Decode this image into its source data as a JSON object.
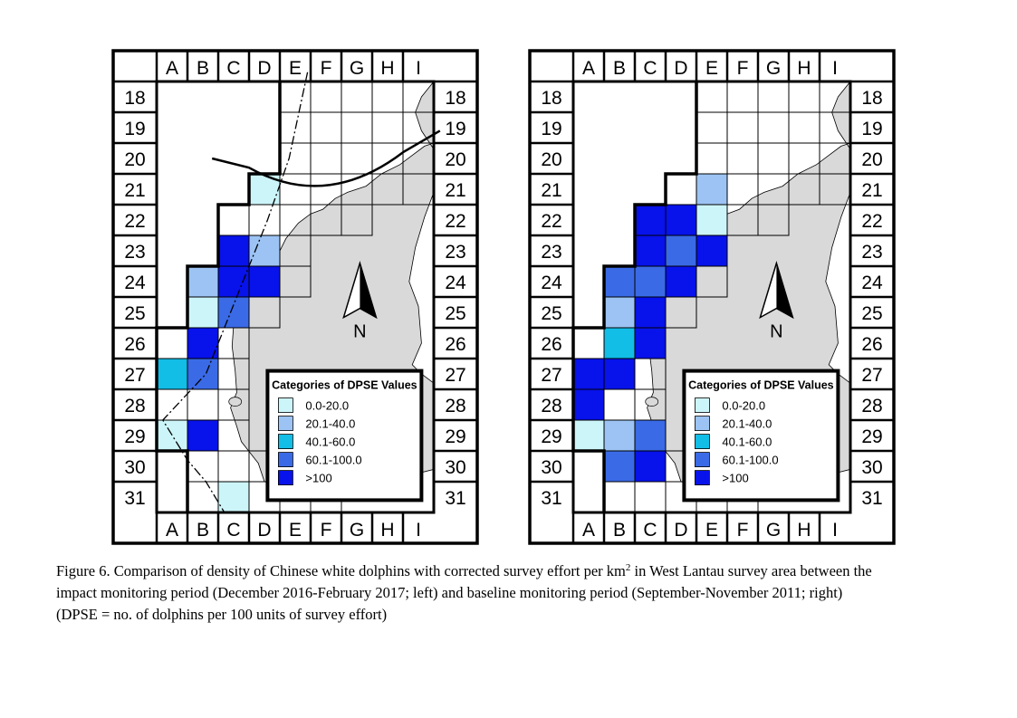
{
  "maps": [
    {
      "id": "impact",
      "columns": [
        "A",
        "B",
        "C",
        "D",
        "E",
        "F",
        "G",
        "H",
        "I"
      ],
      "rows": [
        "18",
        "19",
        "20",
        "21",
        "22",
        "23",
        "24",
        "25",
        "26",
        "27",
        "28",
        "29",
        "30",
        "31"
      ],
      "surveyed_cells": [
        "E18",
        "F18",
        "G18",
        "H18",
        "I18",
        "E19",
        "F19",
        "G19",
        "H19",
        "I19",
        "E20",
        "F20",
        "G20",
        "H20",
        "I20",
        "D21",
        "E21",
        "F21",
        "G21",
        "H21",
        "I21",
        "C22",
        "D22",
        "E22",
        "F22",
        "G22",
        "C23",
        "D23",
        "E23",
        "B24",
        "C24",
        "D24",
        "E24",
        "B25",
        "C25",
        "D25",
        "A26",
        "B26",
        "C26",
        "A27",
        "B27",
        "C27",
        "A28",
        "B28",
        "C28",
        "A29",
        "B29",
        "C29",
        "B30",
        "C30",
        "D30",
        "E30",
        "F30",
        "B31",
        "C31",
        "D31",
        "E31",
        "F31"
      ],
      "density_cells": {
        "D21": "0.0-20.0",
        "C23": ">100",
        "D23": "20.1-40.0",
        "B24": "20.1-40.0",
        "C24": ">100",
        "D24": ">100",
        "B25": "0.0-20.0",
        "C25": "60.1-100.0",
        "B26": ">100",
        "A27": "40.1-60.0",
        "B27": "60.1-100.0",
        "A29": "0.0-20.0",
        "B29": ">100",
        "C31": "0.0-20.0"
      },
      "legend": {
        "title": "Categories of DPSE Values",
        "entries": [
          {
            "label": "0.0-20.0",
            "color": "#ccf5f9"
          },
          {
            "label": "20.1-40.0",
            "color": "#9cc3f3"
          },
          {
            "label": "40.1-60.0",
            "color": "#12bde6"
          },
          {
            "label": "60.1-100.0",
            "color": "#3a6ae6"
          },
          {
            "label": ">100",
            "color": "#0812ea"
          }
        ]
      },
      "north_label": "N"
    },
    {
      "id": "baseline",
      "columns": [
        "A",
        "B",
        "C",
        "D",
        "E",
        "F",
        "G",
        "H",
        "I"
      ],
      "rows": [
        "18",
        "19",
        "20",
        "21",
        "22",
        "23",
        "24",
        "25",
        "26",
        "27",
        "28",
        "29",
        "30",
        "31"
      ],
      "surveyed_cells": [
        "E18",
        "F18",
        "G18",
        "H18",
        "I18",
        "E19",
        "F19",
        "G19",
        "H19",
        "I19",
        "E20",
        "F20",
        "G20",
        "H20",
        "I20",
        "D21",
        "E21",
        "F21",
        "G21",
        "H21",
        "I21",
        "C22",
        "D22",
        "E22",
        "F22",
        "G22",
        "C23",
        "D23",
        "E23",
        "B24",
        "C24",
        "D24",
        "E24",
        "B25",
        "C25",
        "D25",
        "A26",
        "B26",
        "C26",
        "A27",
        "B27",
        "C27",
        "A28",
        "B28",
        "C28",
        "A29",
        "B29",
        "C29",
        "B30",
        "C30",
        "D30",
        "E30",
        "F30",
        "B31",
        "C31",
        "D31",
        "E31",
        "F31"
      ],
      "density_cells": {
        "E21": "20.1-40.0",
        "C22": ">100",
        "D22": ">100",
        "E22": "0.0-20.0",
        "C23": ">100",
        "D23": "60.1-100.0",
        "E23": ">100",
        "B24": "60.1-100.0",
        "C24": "60.1-100.0",
        "D24": ">100",
        "B25": "20.1-40.0",
        "C25": ">100",
        "B26": "40.1-60.0",
        "C26": ">100",
        "A27": ">100",
        "B27": ">100",
        "A28": ">100",
        "A29": "0.0-20.0",
        "B29": "20.1-40.0",
        "C29": "60.1-100.0",
        "B30": "60.1-100.0",
        "C30": ">100"
      },
      "legend": {
        "title": "Categories of DPSE Values",
        "entries": [
          {
            "label": "0.0-20.0",
            "color": "#ccf5f9"
          },
          {
            "label": "20.1-40.0",
            "color": "#9cc3f3"
          },
          {
            "label": "40.1-60.0",
            "color": "#12bde6"
          },
          {
            "label": "60.1-100.0",
            "color": "#3a6ae6"
          },
          {
            "label": ">100",
            "color": "#0812ea"
          }
        ]
      },
      "north_label": "N"
    }
  ],
  "land_color": "#d9d9d9",
  "caption": {
    "line1_before_sup": "Figure 6.  Comparison of density of Chinese white dolphins with corrected survey effort per km",
    "line1_sup": "2",
    "line1_after_sup": " in West Lantau survey area between the",
    "line2": "impact monitoring period (December 2016-February 2017; left) and baseline monitoring period (September-November 2011; right)",
    "line3": "(DPSE = no. of dolphins per 100 units of survey effort)"
  }
}
